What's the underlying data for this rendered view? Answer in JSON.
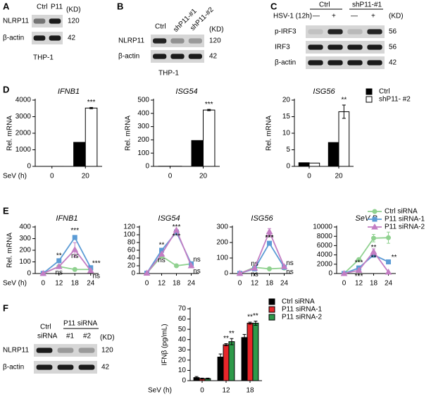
{
  "panel_letters": [
    "A",
    "B",
    "C",
    "D",
    "E",
    "F"
  ],
  "blot_a": {
    "lanes": [
      "Ctrl",
      "P11"
    ],
    "unit": "(KD)",
    "rows": [
      {
        "label": "NLRP11",
        "kd": "120"
      },
      {
        "label": "β-actin",
        "kd": "42"
      }
    ],
    "cell_line": "THP-1"
  },
  "blot_b": {
    "lanes": [
      "Ctrl",
      "shP11-#1",
      "shP11-#2"
    ],
    "unit": "(KD)",
    "rows": [
      {
        "label": "NLRP11",
        "kd": "120"
      },
      {
        "label": "β-actin",
        "kd": "42"
      }
    ],
    "cell_line": "THP-1"
  },
  "blot_c": {
    "groups": [
      "Ctrl",
      "shP11-#1"
    ],
    "treatment": "HSV-1 (12h)",
    "treatment_signs": [
      "—",
      "+",
      "—",
      "+"
    ],
    "unit": "(KD)",
    "rows": [
      {
        "label": "p-IRF3",
        "kd": "56"
      },
      {
        "label": "IRF3",
        "kd": "56"
      },
      {
        "label": "β-actin",
        "kd": "42"
      }
    ]
  },
  "blot_f": {
    "control_lane": [
      "Ctrl",
      "siRNA"
    ],
    "group": "P11 siRNA",
    "lanes": [
      "#1",
      "#2"
    ],
    "unit": "(KD)",
    "rows": [
      {
        "label": "NLRP11",
        "kd": "120"
      },
      {
        "label": "β-actin",
        "kd": "42"
      }
    ]
  },
  "chart_data": [
    {
      "type": "bar",
      "title": "IFNB1",
      "y_label": "Rel. mRNA",
      "x_label": "SeV (h)",
      "categories": [
        "0",
        "20"
      ],
      "series": [
        {
          "color": "#000000",
          "values": [
            1,
            1450
          ]
        },
        {
          "color": "#ffffff",
          "values": [
            1,
            3520
          ],
          "errors": [
            null,
            40
          ],
          "annotations": [
            null,
            "***"
          ]
        }
      ],
      "ylim": [
        0,
        4000
      ],
      "yticks": [
        0,
        1000,
        2000,
        3000,
        4000
      ]
    },
    {
      "type": "bar",
      "title": "ISG54",
      "y_label": "Rel. mRNA",
      "categories": [
        "0",
        "20"
      ],
      "series": [
        {
          "color": "#000000",
          "values": [
            1,
            195
          ]
        },
        {
          "color": "#ffffff",
          "values": [
            1,
            425
          ],
          "errors": [
            null,
            5
          ],
          "annotations": [
            null,
            "***"
          ]
        }
      ],
      "ylim": [
        0,
        500
      ],
      "yticks": [
        0,
        100,
        200,
        300,
        400,
        500
      ]
    },
    {
      "type": "bar",
      "title": "ISG56",
      "y_label": "Rel. mRNA",
      "categories": [
        "0",
        "20"
      ],
      "series": [
        {
          "name": "Ctrl",
          "color": "#000000",
          "values": [
            1.1,
            7.2
          ]
        },
        {
          "name": "shP11- #2",
          "color": "#ffffff",
          "values": [
            1,
            16.5
          ],
          "errors": [
            null,
            2
          ],
          "annotations": [
            null,
            "**"
          ]
        }
      ],
      "ylim": [
        0,
        20
      ],
      "yticks": [
        0,
        5,
        10,
        15,
        20
      ],
      "legend": true
    },
    {
      "type": "line",
      "title": "IFNB1",
      "y_label": "Rel. mRNA",
      "x_label": "SeV (h)",
      "categories": [
        "0",
        "12",
        "18",
        "24"
      ],
      "series": [
        {
          "color": "#8fd18f",
          "values": [
            1,
            60,
            35,
            35
          ]
        },
        {
          "color": "#5b9bd5",
          "values": [
            1,
            110,
            310,
            50
          ],
          "errors": [
            null,
            null,
            15,
            null
          ],
          "annotations": [
            null,
            "**",
            "***",
            "***"
          ]
        },
        {
          "color": "#c37dc3",
          "values": [
            1,
            60,
            205,
            25
          ],
          "errors": [
            null,
            null,
            60,
            null
          ],
          "annotations": [
            null,
            "ns",
            "ns",
            "ns"
          ]
        }
      ],
      "ylim": [
        0,
        400
      ],
      "yticks": [
        0,
        100,
        200,
        300,
        400
      ]
    },
    {
      "type": "line",
      "title": "ISG54",
      "categories": [
        "0",
        "12",
        "18",
        "24"
      ],
      "series": [
        {
          "color": "#8fd18f",
          "values": [
            1,
            45,
            20,
            25
          ]
        },
        {
          "color": "#5b9bd5",
          "values": [
            1,
            60,
            107,
            25
          ],
          "annotations": [
            null,
            "**",
            "***",
            "ns"
          ]
        },
        {
          "color": "#c37dc3",
          "values": [
            1,
            50,
            112,
            20
          ],
          "annotations": [
            null,
            "ns",
            "***",
            "ns"
          ]
        }
      ],
      "ylim": [
        0,
        120
      ],
      "yticks": [
        0,
        20,
        40,
        60,
        80,
        100,
        120
      ]
    },
    {
      "type": "line",
      "title": "ISG56",
      "categories": [
        "0",
        "12",
        "18",
        "24"
      ],
      "series": [
        {
          "color": "#8fd18f",
          "values": [
            1,
            40,
            30,
            35
          ]
        },
        {
          "color": "#5b9bd5",
          "values": [
            1,
            30,
            195,
            40
          ],
          "annotations": [
            null,
            "ns",
            "***",
            "ns"
          ]
        },
        {
          "color": "#c37dc3",
          "values": [
            1,
            35,
            270,
            45
          ],
          "errors": [
            null,
            null,
            20,
            null
          ],
          "annotations": [
            null,
            "ns",
            "***",
            "ns"
          ]
        }
      ],
      "ylim": [
        0,
        300
      ],
      "yticks": [
        0,
        100,
        200,
        300
      ]
    },
    {
      "type": "line",
      "title": "SeV P",
      "categories": [
        "0",
        "12",
        "18",
        "24"
      ],
      "series": [
        {
          "name": "Ctrl siRNA",
          "color": "#8fd18f",
          "values": [
            1,
            3000,
            7600,
            7700
          ],
          "errors": [
            null,
            300,
            800,
            1200
          ]
        },
        {
          "name": "P11 siRNA-1",
          "color": "#5b9bd5",
          "values": [
            1,
            1200,
            4000,
            2500
          ],
          "errors": [
            null,
            null,
            500,
            null
          ],
          "annotations": [
            null,
            "***",
            "**",
            "**"
          ]
        },
        {
          "name": "P11 siRNA-2",
          "color": "#c37dc3",
          "values": [
            1,
            700,
            4700,
            300
          ],
          "errors": [
            null,
            null,
            600,
            null
          ],
          "annotations": [
            null,
            "***",
            "**",
            null
          ]
        }
      ],
      "ylim": [
        0,
        10000
      ],
      "yticks": [
        0,
        2000,
        4000,
        6000,
        8000,
        10000
      ],
      "legend": true
    },
    {
      "type": "bar",
      "y_label": "IFNβ (pg/mL)",
      "x_label": "SeV (h)",
      "categories": [
        "0",
        "12",
        "18"
      ],
      "series": [
        {
          "name": "Ctrl siRNA",
          "color": "#000000",
          "values": [
            3,
            23,
            42
          ],
          "errors": [
            1,
            3,
            3
          ]
        },
        {
          "name": "P11 siRNA-1",
          "color": "#e8262a",
          "values": [
            2,
            35,
            56
          ],
          "errors": [
            0.5,
            1,
            1
          ],
          "annotations": [
            null,
            "**",
            "**"
          ]
        },
        {
          "name": "P11 siRNA-2",
          "color": "#2e9a4a",
          "values": [
            2,
            38,
            56
          ],
          "errors": [
            0.5,
            3,
            2
          ],
          "annotations": [
            null,
            "**",
            "**"
          ]
        }
      ],
      "ylim": [
        0,
        70
      ],
      "yticks": [
        0,
        10,
        20,
        30,
        40,
        50,
        60,
        70
      ],
      "legend": true
    }
  ]
}
